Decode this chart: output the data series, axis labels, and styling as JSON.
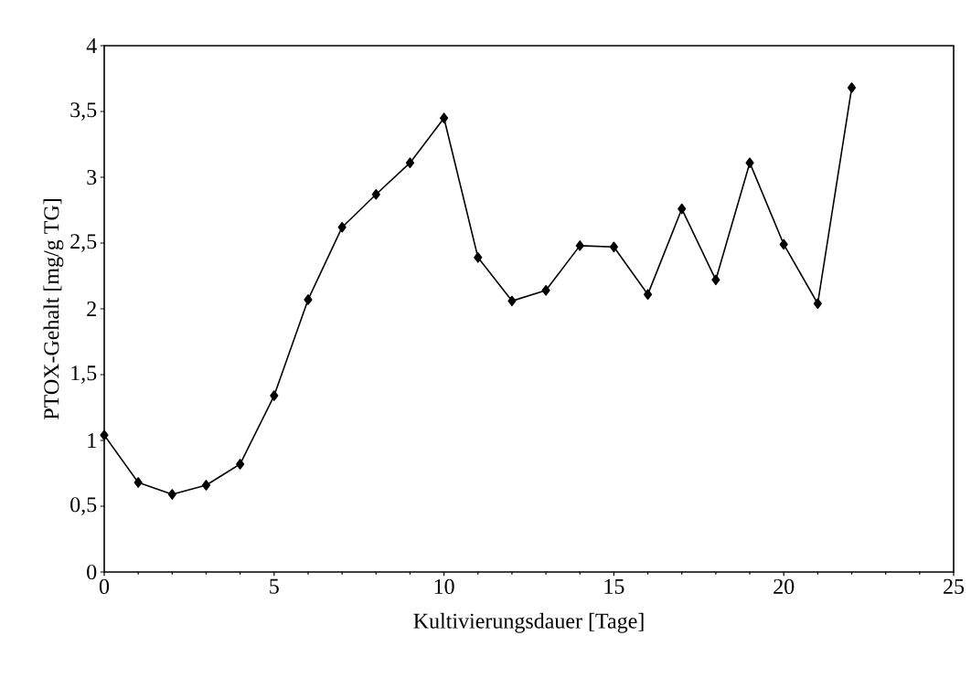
{
  "chart_data": {
    "type": "line",
    "xlabel": "Kultivierungsdauer [Tage]",
    "ylabel": "PTOX-Gehalt [mg/g TG]",
    "x": [
      0,
      1,
      2,
      3,
      4,
      5,
      6,
      7,
      8,
      9,
      10,
      11,
      12,
      13,
      14,
      15,
      16,
      17,
      18,
      19,
      20,
      21,
      22
    ],
    "series": [
      {
        "color": "#000000",
        "values": [
          1.04,
          0.68,
          0.59,
          0.66,
          0.82,
          1.34,
          2.07,
          2.62,
          2.87,
          3.11,
          3.45,
          2.39,
          2.06,
          2.14,
          2.48,
          2.47,
          2.11,
          2.76,
          2.22,
          3.11,
          2.49,
          2.04,
          3.68
        ]
      }
    ],
    "xlim": [
      0,
      25
    ],
    "ylim": [
      0,
      4
    ],
    "xticks": [
      0,
      5,
      10,
      15,
      20,
      25
    ],
    "yticks": [
      0,
      {
        "value": 0.5,
        "label": "0,5"
      },
      1,
      {
        "value": 1.5,
        "label": "1,5"
      },
      2,
      {
        "value": 2.5,
        "label": "2,5"
      },
      3,
      {
        "value": 3.5,
        "label": "3,5"
      },
      4
    ],
    "marker": "diamond",
    "line_style": "solid"
  }
}
